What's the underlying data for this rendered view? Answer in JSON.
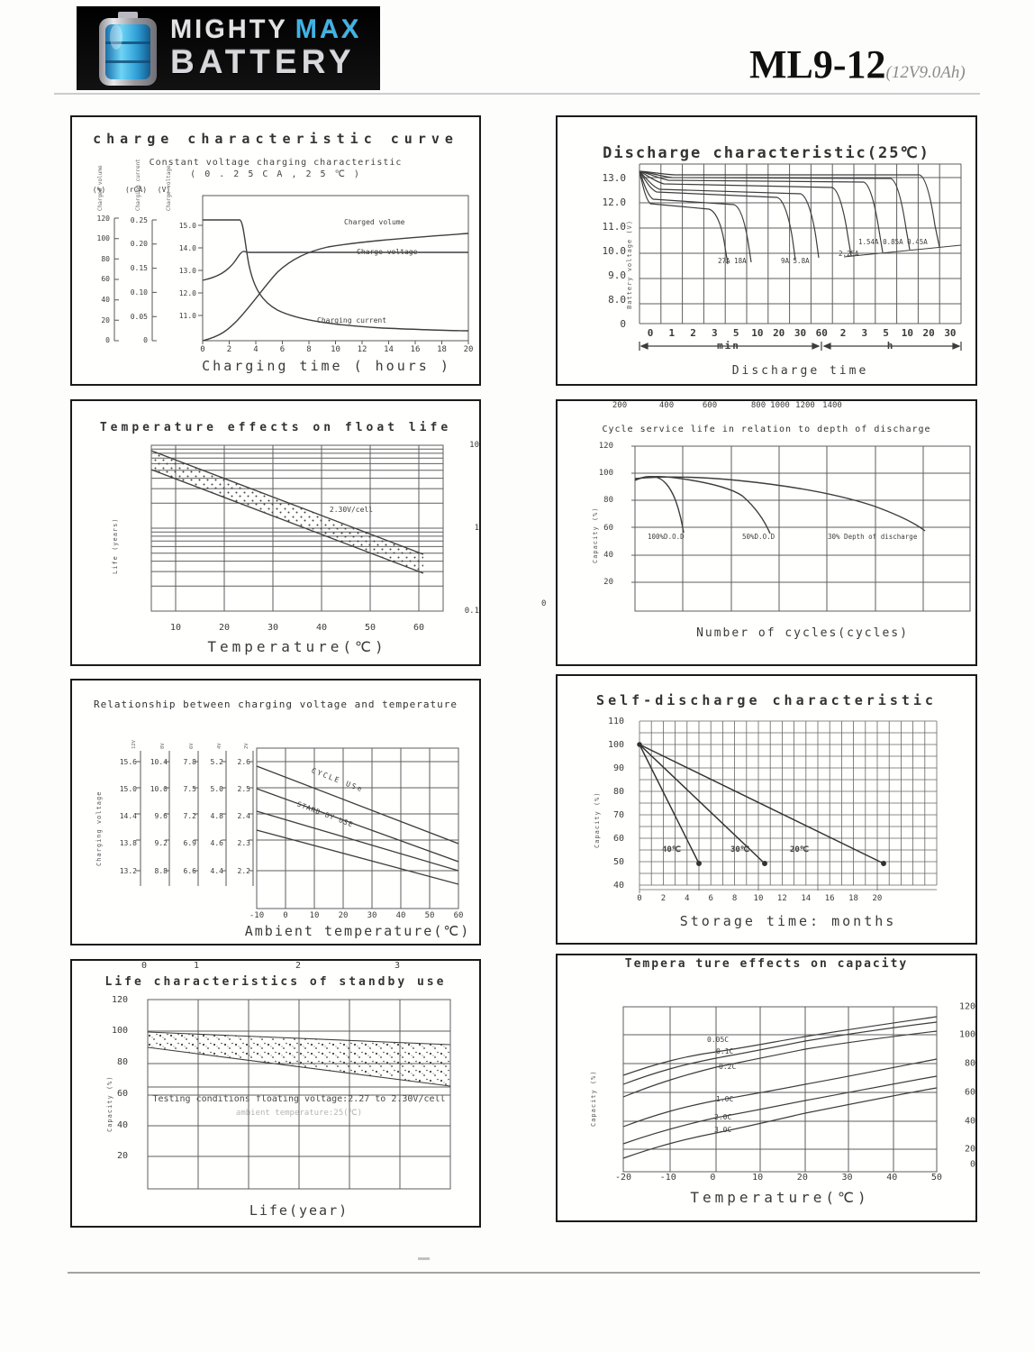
{
  "header": {
    "logo": {
      "word1": "MIGHTY",
      "word2": "MAX",
      "word3": "BATTERY"
    },
    "model": "ML9-12",
    "spec": "(12V9.0Ah)",
    "accent_color": "#3fb3e6",
    "logo_bg": "#070707"
  },
  "chart_data": [
    {
      "id": "charge-characteristic",
      "type": "line",
      "title": "charge characteristic curve",
      "subtitle": "Constant voltage charging characteristic",
      "subtitle2": "( 0 . 2 5 C A , 2 5 ℃ )",
      "x_label": "Charging time ( hours )",
      "x_ticks": [
        "0",
        "2",
        "4",
        "6",
        "8",
        "10",
        "12",
        "14",
        "16",
        "18",
        "20"
      ],
      "y_axes": [
        {
          "name": "Charged volume",
          "unit": "(%)",
          "ticks": [
            "120",
            "100",
            "80",
            "60",
            "40",
            "20",
            "0"
          ]
        },
        {
          "name": "Charging current",
          "unit": "(rCA)",
          "ticks": [
            "0.25",
            "0.20",
            "0.15",
            "0.10",
            "0.05",
            "0"
          ]
        },
        {
          "name": "Charge voltage",
          "unit": "(V)",
          "ticks": [
            "15.0",
            "14.0",
            "13.0",
            "12.0",
            "11.0"
          ]
        }
      ],
      "series": [
        {
          "name": "Charged volume",
          "unit": "%",
          "points": [
            [
              0,
              0
            ],
            [
              2,
              15
            ],
            [
              4,
              45
            ],
            [
              6,
              68
            ],
            [
              8,
              82
            ],
            [
              10,
              90
            ],
            [
              14,
              98
            ],
            [
              20,
              104
            ]
          ]
        },
        {
          "name": "Charge voltage",
          "unit": "V",
          "points": [
            [
              0,
              12.55
            ],
            [
              1.5,
              12.9
            ],
            [
              2.5,
              13.4
            ],
            [
              3,
              13.85
            ],
            [
              4,
              13.8
            ],
            [
              20,
              13.8
            ]
          ]
        },
        {
          "name": "Charging current",
          "unit": "CA",
          "points": [
            [
              0,
              0.25
            ],
            [
              2.8,
              0.25
            ],
            [
              3.5,
              0.13
            ],
            [
              5,
              0.07
            ],
            [
              8,
              0.035
            ],
            [
              14,
              0.02
            ],
            [
              20,
              0.015
            ]
          ]
        }
      ]
    },
    {
      "id": "discharge-characteristic",
      "type": "line",
      "title": "Discharge characteristic(25℃)",
      "y_label": "Battery voltage (V)",
      "y_ticks": [
        "13.0",
        "12.0",
        "11.0",
        "10.0",
        "9.0",
        "8.0",
        "0"
      ],
      "x_ticks": [
        "0",
        "1",
        "2",
        "3",
        "5",
        "10",
        "20",
        "30",
        "60",
        "2",
        "3",
        "5",
        "10",
        "20",
        "30"
      ],
      "x_unit_min": "min",
      "x_unit_h": "h",
      "x_label": "Discharge time",
      "curve_labels": [
        "27A 18A",
        "9A 5.8A",
        "2.25A",
        "1.54A 0.85A 0.45A"
      ],
      "series": [
        {
          "name": "27A",
          "approx_points": [
            [
              "0",
              13.0
            ],
            [
              "2min",
              11.9
            ],
            [
              "5min",
              11.5
            ],
            [
              "6min",
              9.7
            ]
          ]
        },
        {
          "name": "18A",
          "approx_points": [
            [
              "0",
              13.0
            ],
            [
              "3min",
              12.0
            ],
            [
              "8min",
              11.4
            ],
            [
              "10min",
              9.8
            ]
          ]
        },
        {
          "name": "9A",
          "approx_points": [
            [
              "0",
              13.0
            ],
            [
              "5min",
              12.3
            ],
            [
              "20min",
              11.5
            ],
            [
              "30min",
              9.9
            ]
          ]
        },
        {
          "name": "5.8A",
          "approx_points": [
            [
              "0",
              13.0
            ],
            [
              "10min",
              12.4
            ],
            [
              "40min",
              11.4
            ],
            [
              "50min",
              10.0
            ]
          ]
        },
        {
          "name": "2.25A",
          "approx_points": [
            [
              "0",
              13.1
            ],
            [
              "30min",
              12.6
            ],
            [
              "2h",
              11.3
            ],
            [
              "2.5h",
              10.2
            ]
          ]
        },
        {
          "name": "1.54A",
          "approx_points": [
            [
              "0",
              13.1
            ],
            [
              "1h",
              12.7
            ],
            [
              "3h",
              11.4
            ],
            [
              "4h",
              10.3
            ]
          ]
        },
        {
          "name": "0.85A",
          "approx_points": [
            [
              "0",
              13.1
            ],
            [
              "2h",
              12.8
            ],
            [
              "6h",
              11.5
            ],
            [
              "8h",
              10.4
            ]
          ]
        },
        {
          "name": "0.45A",
          "approx_points": [
            [
              "0",
              13.1
            ],
            [
              "5h",
              12.9
            ],
            [
              "15h",
              11.5
            ],
            [
              "20h",
              10.5
            ]
          ]
        }
      ]
    },
    {
      "id": "temperature-effects-float-life",
      "type": "area",
      "title": "Temperature effects on float life",
      "y_label": "Life (years)",
      "y_scale": "log",
      "y_ticks": [
        "10",
        "1",
        "0.1"
      ],
      "x_ticks": [
        "10",
        "20",
        "30",
        "40",
        "50",
        "60"
      ],
      "x_label": "Temperature(℃)",
      "band": {
        "voltage": "2.30V/cell",
        "upper_points": [
          [
            5,
            8.5
          ],
          [
            62,
            0.52
          ]
        ],
        "lower_points": [
          [
            5,
            5.0
          ],
          [
            62,
            0.3
          ]
        ]
      }
    },
    {
      "id": "cycle-service-life",
      "type": "line",
      "title": "Cycle service life in relation to depth of discharge",
      "y_label": "Capacity (%)",
      "y_ticks": [
        "120",
        "100",
        "80",
        "60",
        "40",
        "20"
      ],
      "x_origin_label": "0",
      "x_ticks": [
        "200",
        "400",
        "600",
        "800",
        "1000",
        "1200",
        "1400"
      ],
      "x_label": "Number of cycles(cycles)",
      "series": [
        {
          "label": "100%D.O.D",
          "approx_points": [
            [
              0,
              98
            ],
            [
              50,
              100
            ],
            [
              150,
              88
            ],
            [
              225,
              60
            ]
          ]
        },
        {
          "label": "50%D.O.D",
          "approx_points": [
            [
              0,
              98
            ],
            [
              120,
              100
            ],
            [
              320,
              85
            ],
            [
              420,
              58
            ]
          ]
        },
        {
          "label": "30% Depth of discharge",
          "approx_points": [
            [
              0,
              98
            ],
            [
              250,
              98
            ],
            [
              600,
              91
            ],
            [
              900,
              82
            ],
            [
              1150,
              60
            ]
          ]
        }
      ]
    },
    {
      "id": "charging-voltage-vs-temperature",
      "type": "line",
      "title": "Relationship between charging voltage and temperature",
      "y_label": "Charging voltage",
      "battery_labels": [
        "12V",
        "8V",
        "6V",
        "4V",
        "2V"
      ],
      "axes": [
        {
          "battery": "12V",
          "ticks": [
            "15.6",
            "15.0",
            "14.4",
            "13.8",
            "13.2"
          ]
        },
        {
          "battery": "8V",
          "ticks": [
            "10.4",
            "10.0",
            "9.6",
            "9.2",
            "8.8"
          ]
        },
        {
          "battery": "6V",
          "ticks": [
            "7.8",
            "7.5",
            "7.2",
            "6.9",
            "6.6"
          ]
        },
        {
          "battery": "4V",
          "ticks": [
            "5.2",
            "5.0",
            "4.8",
            "4.6",
            "4.4"
          ]
        },
        {
          "battery": "2V",
          "ticks": [
            "2.6",
            "2.5",
            "2.4",
            "2.3",
            "2.2"
          ]
        }
      ],
      "x_ticks": [
        "-10",
        "0",
        "10",
        "20",
        "30",
        "40",
        "50",
        "60"
      ],
      "x_label": "Ambient temperature(℃)",
      "bands": [
        {
          "label": "CYCLE USe",
          "upper_points_12V": [
            [
              -10,
              15.5
            ],
            [
              60,
              13.8
            ]
          ],
          "lower_points_12V": [
            [
              -10,
              15.0
            ],
            [
              60,
              13.4
            ]
          ]
        },
        {
          "label": "STAND BY USE",
          "upper_points_12V": [
            [
              -10,
              14.5
            ],
            [
              60,
              13.2
            ]
          ],
          "lower_points_12V": [
            [
              -10,
              14.1
            ],
            [
              60,
              12.9
            ]
          ]
        }
      ]
    },
    {
      "id": "self-discharge-characteristic",
      "type": "line",
      "title": "Self-discharge characteristic",
      "y_label": "Capacity (%)",
      "y_ticks": [
        "110",
        "100",
        "90",
        "80",
        "70",
        "60",
        "50",
        "40"
      ],
      "x_ticks": [
        "0",
        "2",
        "4",
        "6",
        "8",
        "10",
        "12",
        "14",
        "16",
        "18",
        "20"
      ],
      "x_label": "Storage time: months",
      "series": [
        {
          "label": "40℃",
          "approx_points": [
            [
              0,
              100
            ],
            [
              5,
              49
            ]
          ]
        },
        {
          "label": "30℃",
          "approx_points": [
            [
              0,
              100
            ],
            [
              10.5,
              49
            ]
          ]
        },
        {
          "label": "20℃",
          "approx_points": [
            [
              0,
              100
            ],
            [
              20.5,
              49
            ]
          ]
        }
      ]
    },
    {
      "id": "life-characteristics-standby",
      "type": "area",
      "title": "Life characteristics of standby use",
      "y_label": "Capacity (%)",
      "y_ticks": [
        "120",
        "100",
        "80",
        "60",
        "40",
        "20"
      ],
      "x_ticks": [
        "0",
        "1",
        "2",
        "3"
      ],
      "x_label": "Life(year)",
      "note1": "Testing conditions floating voltage:2.27 to 2.30V/cell",
      "note2": "ambient temperature:25(℃)",
      "band": {
        "upper_points": [
          [
            0,
            100
          ],
          [
            3.5,
            96
          ]
        ],
        "lower_points": [
          [
            0,
            96
          ],
          [
            3.5,
            67
          ]
        ]
      }
    },
    {
      "id": "temperature-effects-capacity",
      "type": "line",
      "title": "Tempera ture effects on capacity",
      "y_label": "Capacity (%)",
      "y_ticks": [
        "120",
        "100",
        "80",
        "60",
        "40",
        "20",
        "0"
      ],
      "x_ticks": [
        "-20",
        "-10",
        "0",
        "10",
        "20",
        "30",
        "40",
        "50"
      ],
      "x_label": "Temperature(℃)",
      "series": [
        {
          "label": "0.05C",
          "approx_points": [
            [
              -20,
              67
            ],
            [
              0,
              85
            ],
            [
              20,
              97
            ],
            [
              50,
              112
            ]
          ]
        },
        {
          "label": "0.1C",
          "approx_points": [
            [
              -20,
              60
            ],
            [
              0,
              80
            ],
            [
              20,
              93
            ],
            [
              50,
              108
            ]
          ]
        },
        {
          "label": "0.2C",
          "approx_points": [
            [
              -20,
              50
            ],
            [
              0,
              73
            ],
            [
              20,
              87
            ],
            [
              50,
              101
            ]
          ]
        },
        {
          "label": "1.0C",
          "approx_points": [
            [
              -20,
              27
            ],
            [
              0,
              47
            ],
            [
              20,
              60
            ],
            [
              50,
              79
            ]
          ]
        },
        {
          "label": "2.0C",
          "approx_points": [
            [
              -20,
              13
            ],
            [
              0,
              34
            ],
            [
              20,
              47
            ],
            [
              50,
              66
            ]
          ]
        },
        {
          "label": "3.0C",
          "approx_points": [
            [
              -20,
              2
            ],
            [
              0,
              22
            ],
            [
              20,
              37
            ],
            [
              50,
              57
            ]
          ]
        }
      ]
    }
  ]
}
